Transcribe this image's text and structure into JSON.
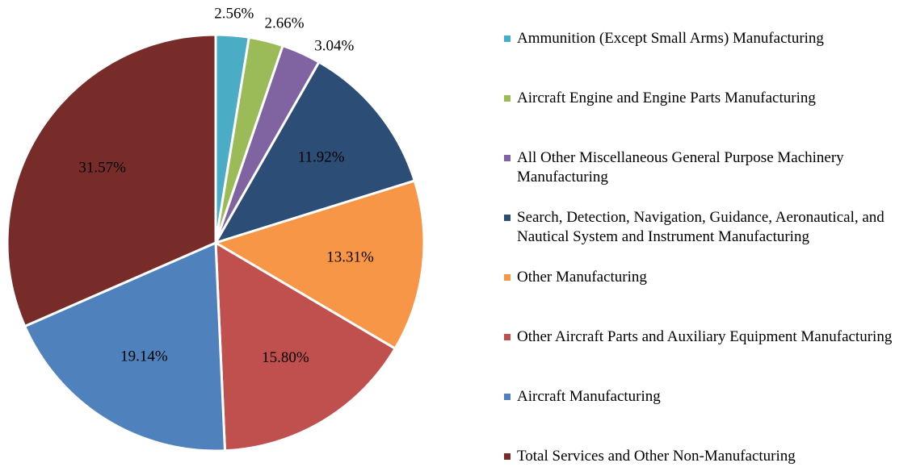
{
  "chart_data": {
    "type": "pie",
    "categories": [
      "Ammunition (Except Small Arms) Manufacturing",
      "Aircraft Engine and Engine Parts Manufacturing",
      "All Other Miscellaneous General Purpose Machinery Manufacturing",
      "Search, Detection, Navigation, Guidance, Aeronautical, and Nautical System and Instrument Manufacturing",
      "Other Manufacturing",
      "Other Aircraft Parts and Auxiliary Equipment Manufacturing",
      "Aircraft Manufacturing",
      "Total Services and Other Non-Manufacturing"
    ],
    "values": [
      2.56,
      2.66,
      3.04,
      11.92,
      13.31,
      15.8,
      19.14,
      31.57
    ],
    "value_labels": [
      "2.56%",
      "2.66%",
      "3.04%",
      "11.92%",
      "13.31%",
      "15.80%",
      "19.14%",
      "31.57%"
    ],
    "colors": [
      "#4bacc6",
      "#9bbb59",
      "#8064a2",
      "#2c4d75",
      "#f79646",
      "#c0504d",
      "#4f81bd",
      "#772c2a"
    ],
    "legend": "right"
  }
}
